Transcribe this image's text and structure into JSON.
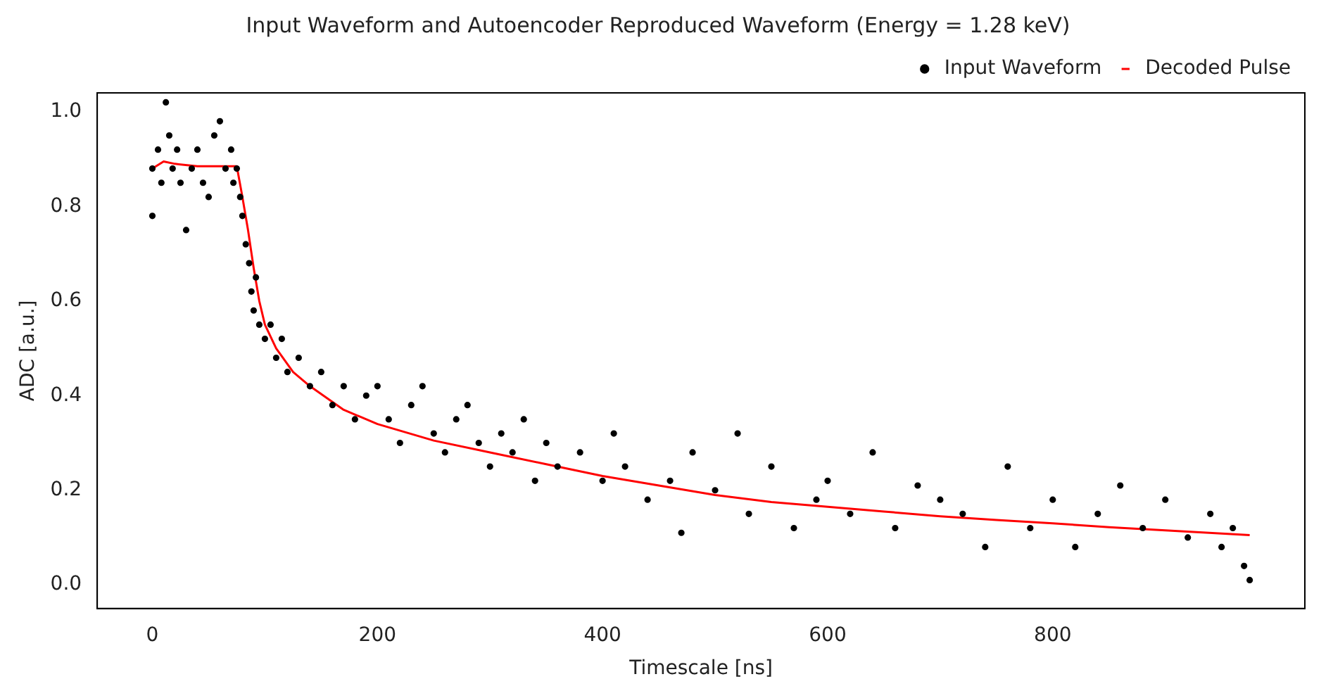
{
  "chart_data": {
    "type": "scatter",
    "title": "Input Waveform and Autoencoder Reproduced Waveform (Energy = 1.28 keV)",
    "xlabel": "Timescale [ns]",
    "ylabel": "ADC [a.u.]",
    "xlim": [
      -49,
      1024
    ],
    "ylim": [
      -0.05,
      1.04
    ],
    "xticks": [
      0,
      200,
      400,
      600,
      800
    ],
    "yticks": [
      {
        "value": 0,
        "label": "0.0"
      },
      0.2,
      0.4,
      0.6,
      0.8,
      {
        "value": 1,
        "label": "1.0"
      }
    ],
    "legend": "top right",
    "grid": false,
    "series": [
      {
        "name": "Input Waveform",
        "marker": "circle",
        "color": "#000000",
        "x": [
          0,
          0,
          5,
          8,
          12,
          15,
          18,
          22,
          25,
          30,
          35,
          40,
          45,
          50,
          55,
          60,
          65,
          70,
          72,
          75,
          78,
          80,
          83,
          86,
          88,
          90,
          92,
          95,
          100,
          105,
          110,
          115,
          120,
          130,
          140,
          150,
          160,
          170,
          180,
          190,
          200,
          210,
          220,
          230,
          240,
          250,
          260,
          270,
          280,
          290,
          300,
          310,
          320,
          330,
          340,
          350,
          360,
          380,
          400,
          410,
          420,
          440,
          460,
          470,
          480,
          500,
          520,
          530,
          550,
          570,
          590,
          600,
          620,
          640,
          660,
          680,
          700,
          720,
          740,
          760,
          780,
          800,
          820,
          840,
          860,
          880,
          900,
          920,
          940,
          950,
          960,
          970,
          975
        ],
        "values": [
          0.88,
          0.78,
          0.92,
          0.85,
          1.02,
          0.95,
          0.88,
          0.92,
          0.85,
          0.75,
          0.88,
          0.92,
          0.85,
          0.82,
          0.95,
          0.98,
          0.88,
          0.92,
          0.85,
          0.88,
          0.82,
          0.78,
          0.72,
          0.68,
          0.62,
          0.58,
          0.65,
          0.55,
          0.52,
          0.55,
          0.48,
          0.52,
          0.45,
          0.48,
          0.42,
          0.45,
          0.38,
          0.42,
          0.35,
          0.4,
          0.42,
          0.35,
          0.3,
          0.38,
          0.42,
          0.32,
          0.28,
          0.35,
          0.38,
          0.3,
          0.25,
          0.32,
          0.28,
          0.35,
          0.22,
          0.3,
          0.25,
          0.28,
          0.22,
          0.32,
          0.25,
          0.18,
          0.22,
          0.11,
          0.28,
          0.2,
          0.32,
          0.15,
          0.25,
          0.12,
          0.18,
          0.22,
          0.15,
          0.28,
          0.12,
          0.21,
          0.18,
          0.15,
          0.08,
          0.25,
          0.12,
          0.18,
          0.08,
          0.15,
          0.21,
          0.12,
          0.18,
          0.1,
          0.15,
          0.08,
          0.12,
          0.04,
          0.01
        ]
      },
      {
        "name": "Decoded Pulse",
        "type": "line",
        "marker": "none",
        "color": "#ff0000",
        "x": [
          0,
          10,
          20,
          40,
          60,
          75,
          80,
          85,
          90,
          95,
          100,
          110,
          125,
          140,
          170,
          200,
          250,
          300,
          350,
          400,
          450,
          500,
          550,
          600,
          650,
          700,
          750,
          800,
          850,
          900,
          975
        ],
        "values": [
          0.88,
          0.895,
          0.89,
          0.885,
          0.885,
          0.885,
          0.82,
          0.75,
          0.67,
          0.6,
          0.55,
          0.5,
          0.45,
          0.42,
          0.37,
          0.34,
          0.305,
          0.28,
          0.255,
          0.23,
          0.21,
          0.19,
          0.175,
          0.165,
          0.155,
          0.145,
          0.137,
          0.13,
          0.122,
          0.115,
          0.105
        ]
      }
    ]
  }
}
